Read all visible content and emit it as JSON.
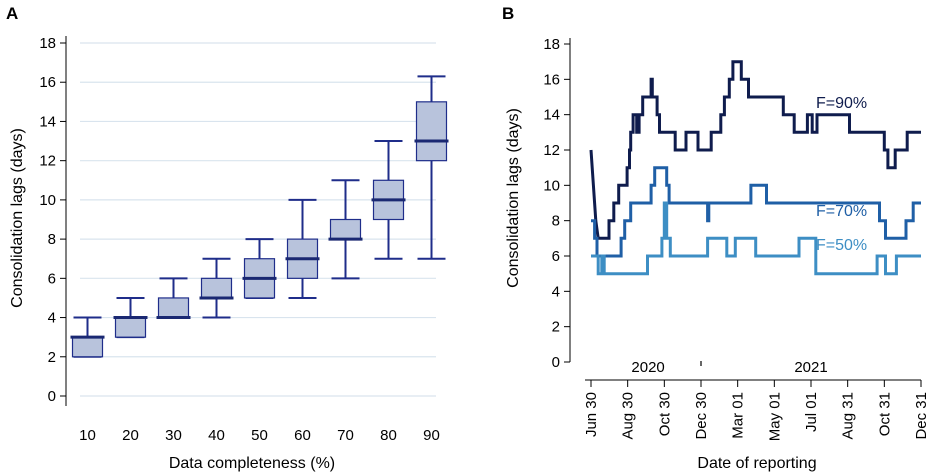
{
  "chart_data": [
    {
      "panel": "A",
      "type": "box",
      "xlabel": "Data completeness (%)",
      "ylabel": "Consolidation lags (days)",
      "ylim": [
        0,
        18
      ],
      "yticks": [
        0,
        2,
        4,
        6,
        8,
        10,
        12,
        14,
        16,
        18
      ],
      "categories": [
        "10",
        "20",
        "30",
        "40",
        "50",
        "60",
        "70",
        "80",
        "90"
      ],
      "boxes": [
        {
          "min": 2,
          "q1": 2,
          "median": 3,
          "q3": 3,
          "max": 4
        },
        {
          "min": 3,
          "q1": 3,
          "median": 4,
          "q3": 4,
          "max": 5
        },
        {
          "min": 4,
          "q1": 4,
          "median": 4,
          "q3": 5,
          "max": 6
        },
        {
          "min": 4,
          "q1": 5,
          "median": 5,
          "q3": 6,
          "max": 7
        },
        {
          "min": 5,
          "q1": 5,
          "median": 6,
          "q3": 7,
          "max": 8
        },
        {
          "min": 5,
          "q1": 6,
          "median": 7,
          "q3": 8,
          "max": 10
        },
        {
          "min": 6,
          "q1": 8,
          "median": 8,
          "q3": 9,
          "max": 11
        },
        {
          "min": 7,
          "q1": 9,
          "median": 10,
          "q3": 11,
          "max": 13
        },
        {
          "min": 7,
          "q1": 12,
          "median": 13,
          "q3": 15,
          "max": 16.3
        }
      ],
      "colors": {
        "box_fill": "#b8c3dc",
        "box_edge": "#1f2d8a",
        "median": "#1a2872",
        "grid": "#d9e4ee"
      }
    },
    {
      "panel": "B",
      "type": "line",
      "xlabel": "Date of reporting",
      "ylabel": "Consolidation lags (days)",
      "ylim": [
        0,
        18
      ],
      "yticks": [
        0,
        2,
        4,
        6,
        8,
        10,
        12,
        14,
        16,
        18
      ],
      "xlim": [
        0,
        549
      ],
      "xticks": [
        {
          "day": 0,
          "label": "Jun 30"
        },
        {
          "day": 61,
          "label": "Aug 30"
        },
        {
          "day": 122,
          "label": "Oct 30"
        },
        {
          "day": 183,
          "label": "Dec 30"
        },
        {
          "day": 244,
          "label": "Mar 01"
        },
        {
          "day": 305,
          "label": "May 01"
        },
        {
          "day": 366,
          "label": "Jul 01"
        },
        {
          "day": 427,
          "label": "Aug 31"
        },
        {
          "day": 488,
          "label": "Oct 31"
        },
        {
          "day": 549,
          "label": "Dec 31"
        }
      ],
      "years": [
        {
          "label": "2020",
          "center_day": 95
        },
        {
          "label": "2021",
          "center_day": 366
        }
      ],
      "year_separator_day": 183,
      "series": [
        {
          "name": "F=90%",
          "color": "#0f1c4d",
          "points": [
            [
              0,
              12
            ],
            [
              2,
              11
            ],
            [
              4,
              10
            ],
            [
              6,
              9
            ],
            [
              8,
              8
            ],
            [
              12,
              7
            ],
            [
              30,
              7
            ],
            [
              30,
              8
            ],
            [
              38,
              8
            ],
            [
              38,
              9
            ],
            [
              46,
              9
            ],
            [
              46,
              10
            ],
            [
              60,
              10
            ],
            [
              60,
              11
            ],
            [
              64,
              11
            ],
            [
              64,
              12
            ],
            [
              66,
              12
            ],
            [
              66,
              13
            ],
            [
              70,
              13
            ],
            [
              70,
              14
            ],
            [
              76,
              14
            ],
            [
              76,
              13
            ],
            [
              80,
              13
            ],
            [
              80,
              14
            ],
            [
              86,
              14
            ],
            [
              86,
              15
            ],
            [
              100,
              15
            ],
            [
              100,
              16
            ],
            [
              102,
              16
            ],
            [
              102,
              15
            ],
            [
              110,
              15
            ],
            [
              110,
              14
            ],
            [
              114,
              14
            ],
            [
              114,
              13
            ],
            [
              140,
              13
            ],
            [
              140,
              12
            ],
            [
              158,
              12
            ],
            [
              158,
              13
            ],
            [
              178,
              13
            ],
            [
              178,
              12
            ],
            [
              200,
              12
            ],
            [
              200,
              13
            ],
            [
              216,
              13
            ],
            [
              216,
              14
            ],
            [
              222,
              14
            ],
            [
              222,
              15
            ],
            [
              230,
              15
            ],
            [
              230,
              16
            ],
            [
              236,
              16
            ],
            [
              236,
              17
            ],
            [
              250,
              17
            ],
            [
              250,
              16
            ],
            [
              262,
              16
            ],
            [
              262,
              15
            ],
            [
              320,
              15
            ],
            [
              320,
              14
            ],
            [
              338,
              14
            ],
            [
              338,
              13
            ],
            [
              360,
              13
            ],
            [
              360,
              14
            ],
            [
              368,
              14
            ],
            [
              368,
              13
            ],
            [
              376,
              13
            ],
            [
              376,
              14
            ],
            [
              430,
              14
            ],
            [
              430,
              13
            ],
            [
              488,
              13
            ],
            [
              488,
              12
            ],
            [
              494,
              12
            ],
            [
              494,
              11
            ],
            [
              506,
              11
            ],
            [
              506,
              12
            ],
            [
              526,
              12
            ],
            [
              526,
              13
            ],
            [
              549,
              13
            ]
          ]
        },
        {
          "name": "F=70%",
          "color": "#1f5fa6",
          "points": [
            [
              0,
              8
            ],
            [
              6,
              8
            ],
            [
              6,
              7
            ],
            [
              10,
              7
            ],
            [
              10,
              6
            ],
            [
              50,
              6
            ],
            [
              50,
              7
            ],
            [
              56,
              7
            ],
            [
              56,
              8
            ],
            [
              66,
              8
            ],
            [
              66,
              9
            ],
            [
              100,
              9
            ],
            [
              100,
              10
            ],
            [
              106,
              10
            ],
            [
              106,
              11
            ],
            [
              126,
              11
            ],
            [
              126,
              10
            ],
            [
              130,
              10
            ],
            [
              130,
              9
            ],
            [
              194,
              9
            ],
            [
              194,
              8
            ],
            [
              196,
              8
            ],
            [
              196,
              9
            ],
            [
              266,
              9
            ],
            [
              266,
              10
            ],
            [
              292,
              10
            ],
            [
              292,
              9
            ],
            [
              480,
              9
            ],
            [
              480,
              8
            ],
            [
              490,
              8
            ],
            [
              490,
              7
            ],
            [
              524,
              7
            ],
            [
              524,
              8
            ],
            [
              536,
              8
            ],
            [
              536,
              9
            ],
            [
              549,
              9
            ]
          ]
        },
        {
          "name": "F=50%",
          "color": "#3d8ec4",
          "points": [
            [
              0,
              6
            ],
            [
              12,
              6
            ],
            [
              12,
              5
            ],
            [
              18,
              5
            ],
            [
              18,
              6
            ],
            [
              22,
              6
            ],
            [
              22,
              5
            ],
            [
              94,
              5
            ],
            [
              94,
              6
            ],
            [
              118,
              6
            ],
            [
              118,
              7
            ],
            [
              122,
              7
            ],
            [
              122,
              9
            ],
            [
              126,
              9
            ],
            [
              126,
              7
            ],
            [
              132,
              7
            ],
            [
              132,
              6
            ],
            [
              194,
              6
            ],
            [
              194,
              7
            ],
            [
              226,
              7
            ],
            [
              226,
              6
            ],
            [
              240,
              6
            ],
            [
              240,
              7
            ],
            [
              274,
              7
            ],
            [
              274,
              6
            ],
            [
              346,
              6
            ],
            [
              346,
              7
            ],
            [
              374,
              7
            ],
            [
              374,
              5
            ],
            [
              476,
              5
            ],
            [
              476,
              6
            ],
            [
              490,
              6
            ],
            [
              490,
              5
            ],
            [
              508,
              5
            ],
            [
              508,
              6
            ],
            [
              549,
              6
            ]
          ]
        }
      ]
    }
  ]
}
